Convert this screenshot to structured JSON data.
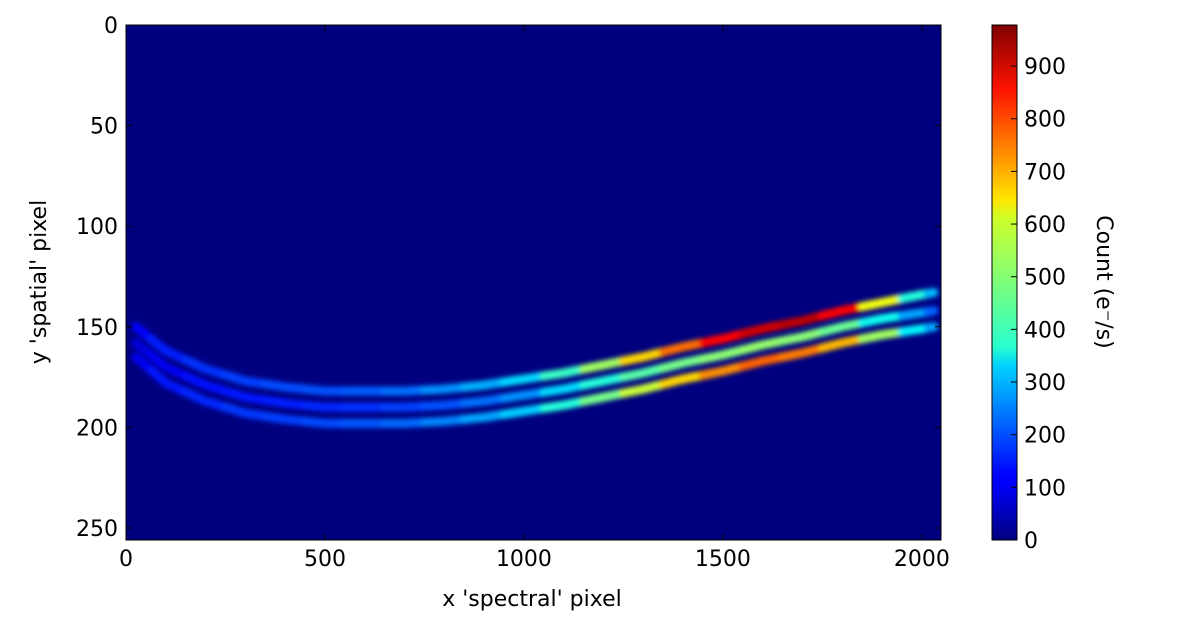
{
  "chart_data": {
    "type": "heatmap",
    "x_label": "x 'spectral' pixel",
    "y_label": "y 'spatial' pixel",
    "colorbar_label": "Count (e⁻/s)",
    "xlim": [
      0,
      2048
    ],
    "xticks": [
      0,
      500,
      1000,
      1500,
      2000
    ],
    "ylim": [
      256,
      0
    ],
    "yticks": [
      0,
      50,
      100,
      150,
      200,
      250
    ],
    "clim": [
      0,
      978
    ],
    "cticks": [
      0,
      100,
      200,
      300,
      400,
      500,
      600,
      700,
      800,
      900
    ],
    "colormap": "jet",
    "traces": [
      {
        "x": [
          25,
          100,
          200,
          300,
          400,
          500,
          600,
          700,
          800,
          900,
          1000,
          1100,
          1200,
          1300,
          1400,
          1500,
          1600,
          1700,
          1800,
          1900,
          2000,
          2030
        ],
        "y": [
          150,
          162,
          171,
          177,
          180,
          182,
          182,
          182,
          181,
          179,
          176,
          173,
          169,
          165,
          160,
          156,
          151,
          147,
          142,
          138,
          134,
          133
        ],
        "values": [
          120,
          150,
          170,
          185,
          195,
          200,
          210,
          230,
          260,
          290,
          330,
          420,
          520,
          650,
          750,
          850,
          900,
          920,
          860,
          600,
          400,
          300
        ]
      },
      {
        "x": [
          25,
          100,
          200,
          300,
          400,
          500,
          600,
          700,
          800,
          900,
          1000,
          1100,
          1200,
          1300,
          1400,
          1500,
          1600,
          1700,
          1800,
          1900,
          2000,
          2030
        ],
        "y": [
          158,
          170,
          179,
          185,
          188,
          190,
          190,
          190,
          189,
          187,
          184,
          181,
          177,
          173,
          168,
          164,
          159,
          155,
          150,
          146,
          143,
          142
        ],
        "values": [
          90,
          110,
          130,
          140,
          150,
          160,
          170,
          185,
          200,
          230,
          260,
          330,
          400,
          450,
          480,
          500,
          510,
          500,
          470,
          380,
          280,
          220
        ]
      },
      {
        "x": [
          25,
          100,
          200,
          300,
          400,
          500,
          600,
          700,
          800,
          900,
          1000,
          1100,
          1200,
          1300,
          1400,
          1500,
          1600,
          1700,
          1800,
          1900,
          2000,
          2030
        ],
        "y": [
          165,
          178,
          187,
          193,
          196,
          198,
          198,
          198,
          197,
          195,
          192,
          189,
          185,
          181,
          176,
          172,
          167,
          163,
          158,
          154,
          151,
          150
        ],
        "values": [
          110,
          140,
          160,
          175,
          185,
          195,
          205,
          225,
          250,
          280,
          320,
          400,
          480,
          560,
          650,
          720,
          760,
          740,
          680,
          520,
          360,
          280
        ]
      }
    ]
  }
}
